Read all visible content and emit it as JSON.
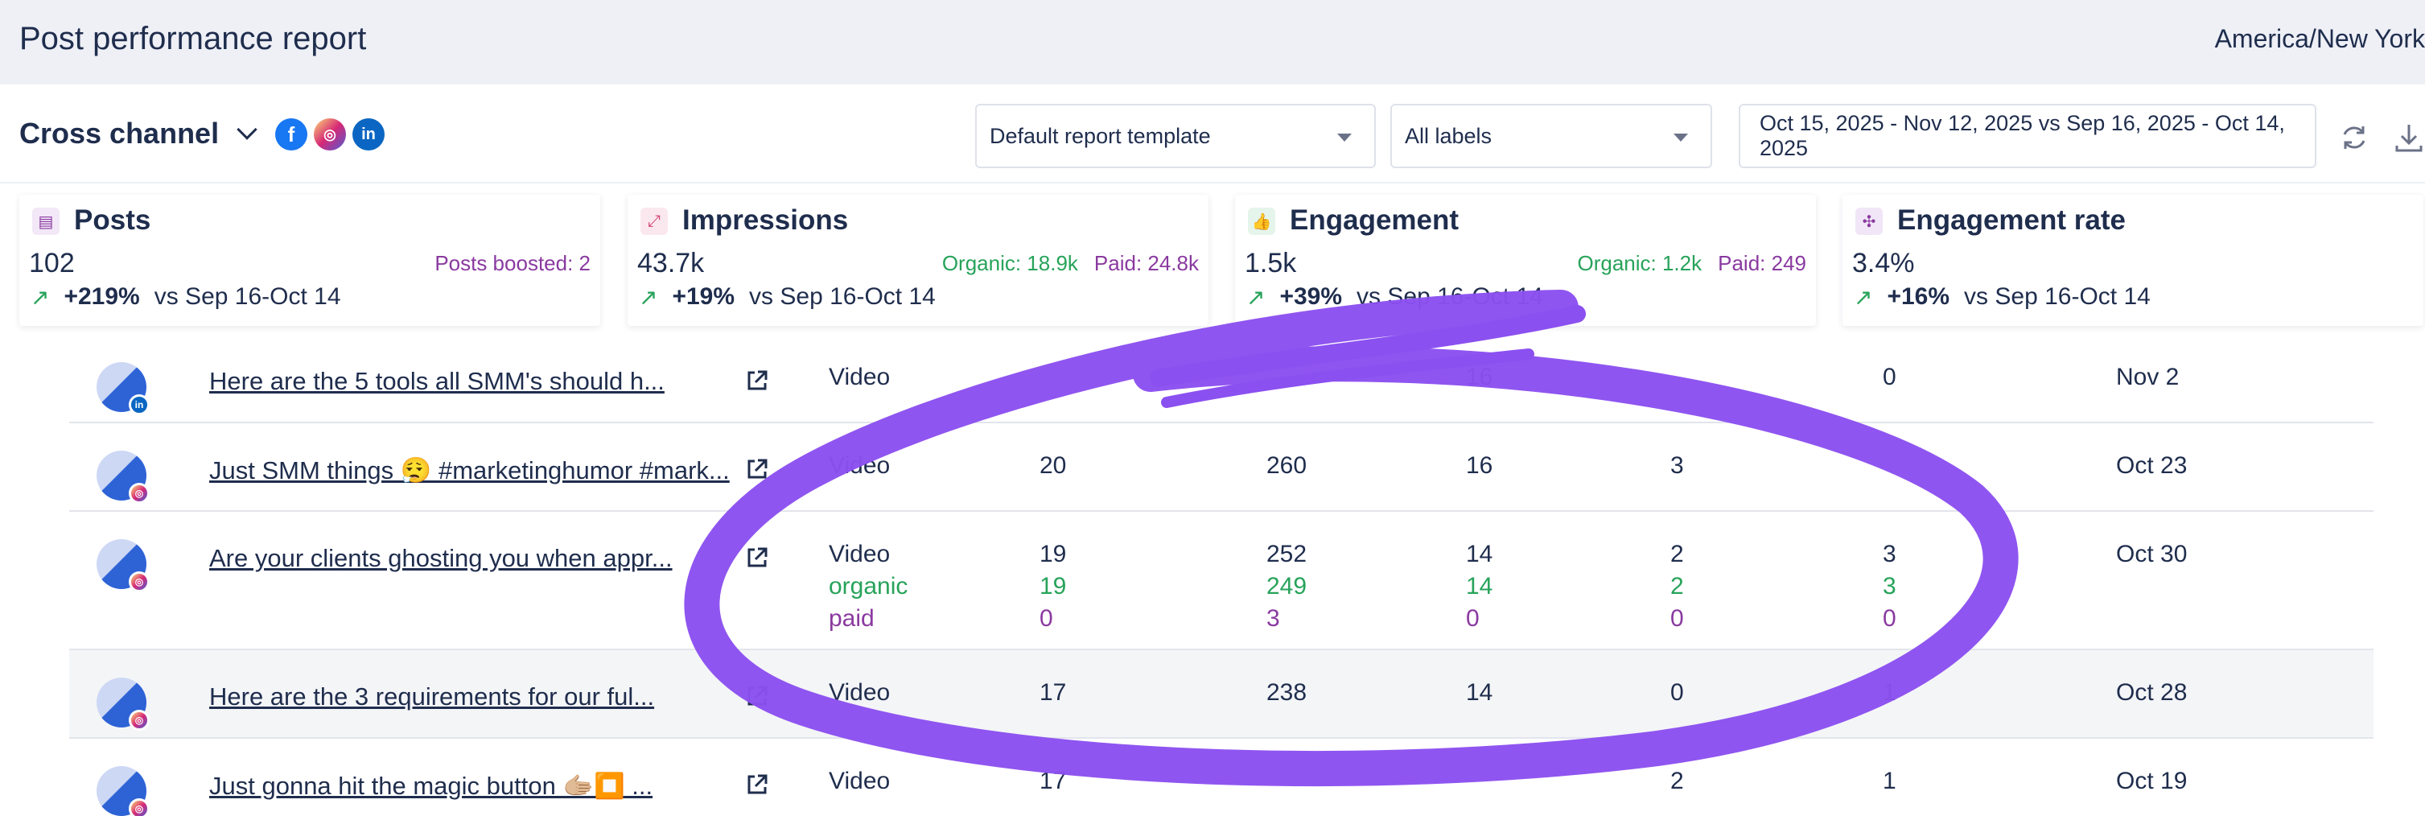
{
  "header": {
    "title": "Post performance report",
    "timezone": "America/New York"
  },
  "toolbar": {
    "channel": "Cross channel",
    "social_icons": [
      "facebook-icon",
      "instagram-icon",
      "linkedin-icon"
    ],
    "template_select": "Default report template",
    "labels_select": "All labels",
    "date_range": "Oct 15, 2025 - Nov 12, 2025 vs Sep 16, 2025 - Oct 14, 2025"
  },
  "cards": [
    {
      "title": "Posts",
      "value": "102",
      "sub": [
        {
          "text": "Posts boosted: 2",
          "kind": "paid"
        }
      ],
      "trend_pct": "+219%",
      "trend_label": "vs Sep 16-Oct 14",
      "icon": "document-icon"
    },
    {
      "title": "Impressions",
      "value": "43.7k",
      "sub": [
        {
          "text": "Organic: 18.9k",
          "kind": "organic"
        },
        {
          "text": "Paid: 24.8k",
          "kind": "paid"
        }
      ],
      "trend_pct": "+19%",
      "trend_label": "vs Sep 16-Oct 14",
      "icon": "impressions-icon"
    },
    {
      "title": "Engagement",
      "value": "1.5k",
      "sub": [
        {
          "text": "Organic: 1.2k",
          "kind": "organic"
        },
        {
          "text": "Paid: 249",
          "kind": "paid"
        }
      ],
      "trend_pct": "+39%",
      "trend_label": "vs Sep 16-Oct 14",
      "icon": "thumbs-up-icon"
    },
    {
      "title": "Engagement rate",
      "value": "3.4%",
      "sub": [],
      "trend_pct": "+16%",
      "trend_label": "vs Sep 16-Oct 14",
      "icon": "network-icon"
    }
  ],
  "rows": [
    {
      "network": "linkedin",
      "post": "Here are the 5 tools all SMM's should h...",
      "type": "Video",
      "c1": "",
      "c2": "",
      "c3": "16",
      "c4": "",
      "c5": "0",
      "date": "Nov 2"
    },
    {
      "network": "instagram",
      "post": "Just SMM things 😮‍💨 #marketinghumor #mark...",
      "type": "Video",
      "c1": "20",
      "c2": "260",
      "c3": "16",
      "c4": "3",
      "c5": "",
      "date": "Oct 23"
    },
    {
      "network": "instagram",
      "post": "Are your clients ghosting you when appr...",
      "type": "Video",
      "c1": "19",
      "c2": "252",
      "c3": "14",
      "c4": "2",
      "c5": "3",
      "date": "Oct 30",
      "organic": {
        "label": "organic",
        "c1": "19",
        "c2": "249",
        "c3": "14",
        "c4": "2",
        "c5": "3"
      },
      "paid": {
        "label": "paid",
        "c1": "0",
        "c2": "3",
        "c3": "0",
        "c4": "0",
        "c5": "0"
      }
    },
    {
      "network": "instagram",
      "post": "Here are the 3 requirements for our ful...",
      "type": "Video",
      "c1": "17",
      "c2": "238",
      "c3": "14",
      "c4": "0",
      "c5": "1",
      "date": "Oct 28"
    },
    {
      "network": "instagram",
      "post": "Just gonna hit the magic button 🫱🏼⏹️ ...",
      "type": "Video",
      "c1": "17",
      "c2": "",
      "c3": "",
      "c4": "2",
      "c5": "1",
      "date": "Oct 19"
    }
  ],
  "colors": {
    "organic": "#27a35a",
    "paid": "#8a3aa0",
    "annotation": "#8b50f0"
  }
}
